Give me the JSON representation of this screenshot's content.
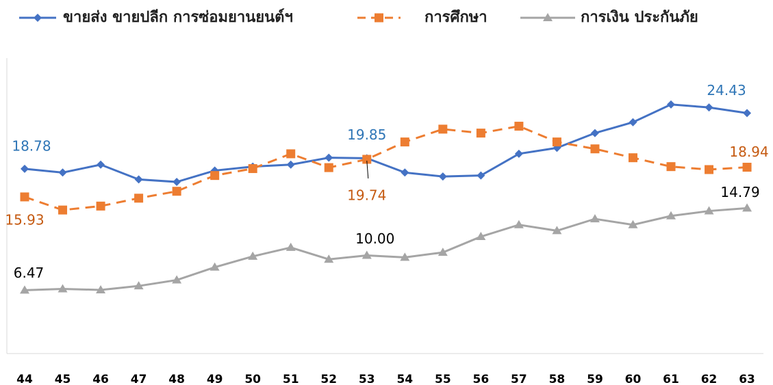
{
  "chart_data": {
    "type": "line",
    "categories": [
      "44",
      "45",
      "46",
      "47",
      "48",
      "49",
      "50",
      "51",
      "52",
      "53",
      "54",
      "55",
      "56",
      "57",
      "58",
      "59",
      "60",
      "61",
      "62",
      "63"
    ],
    "ylim": [
      0,
      30
    ],
    "legend": "top",
    "series": [
      {
        "name": "ขายส่ง ขายปลีก การซ่อมยานยนต์ฯ",
        "color": "#4472c4",
        "marker": "diamond",
        "dash": false,
        "label_color": "#2e75b6",
        "values": [
          18.78,
          18.4,
          19.2,
          17.7,
          17.45,
          18.6,
          19.0,
          19.2,
          19.9,
          19.85,
          18.4,
          18.0,
          18.1,
          20.3,
          20.9,
          22.4,
          23.5,
          25.3,
          25.0,
          24.43
        ],
        "value_labels": [
          "18.78",
          null,
          null,
          null,
          null,
          null,
          null,
          null,
          null,
          "19.85",
          null,
          null,
          null,
          null,
          null,
          null,
          null,
          null,
          null,
          "24.43"
        ]
      },
      {
        "name": "การศึกษา",
        "color": "#ed7d31",
        "marker": "square",
        "dash": true,
        "label_color": "#c55a11",
        "values": [
          15.93,
          14.6,
          15.0,
          15.8,
          16.5,
          18.1,
          18.8,
          20.3,
          18.9,
          19.74,
          21.5,
          22.8,
          22.4,
          23.1,
          21.5,
          20.8,
          19.9,
          19.0,
          18.7,
          18.94
        ],
        "value_labels": [
          "15.93",
          null,
          null,
          null,
          null,
          null,
          null,
          null,
          null,
          "19.74",
          null,
          null,
          null,
          null,
          null,
          null,
          null,
          null,
          null,
          "18.94"
        ]
      },
      {
        "name": "การเงิน ประกันภัย",
        "color": "#a5a5a5",
        "marker": "triangle",
        "dash": false,
        "label_color": "#000000",
        "values": [
          6.47,
          6.6,
          6.5,
          6.9,
          7.5,
          8.8,
          9.9,
          10.8,
          9.6,
          10.0,
          9.8,
          10.3,
          11.9,
          13.1,
          12.5,
          13.7,
          13.1,
          14.0,
          14.5,
          14.79
        ],
        "value_labels": [
          "6.47",
          null,
          null,
          null,
          null,
          null,
          null,
          null,
          null,
          "10.00",
          null,
          null,
          null,
          null,
          null,
          null,
          null,
          null,
          null,
          "14.79"
        ]
      }
    ]
  }
}
